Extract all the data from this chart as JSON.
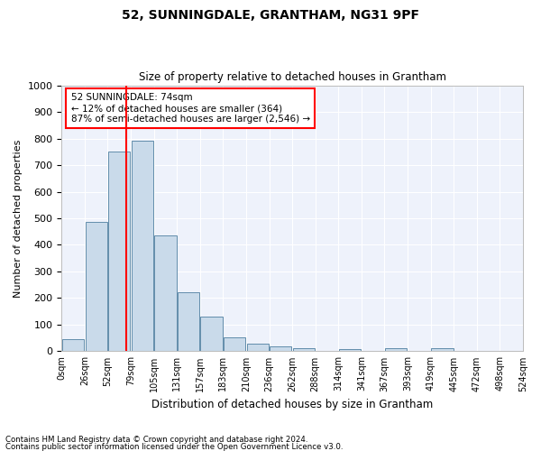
{
  "title1": "52, SUNNINGDALE, GRANTHAM, NG31 9PF",
  "title2": "Size of property relative to detached houses in Grantham",
  "xlabel": "Distribution of detached houses by size in Grantham",
  "ylabel": "Number of detached properties",
  "footnote1": "Contains HM Land Registry data © Crown copyright and database right 2024.",
  "footnote2": "Contains public sector information licensed under the Open Government Licence v3.0.",
  "annotation_line1": "52 SUNNINGDALE: 74sqm",
  "annotation_line2": "← 12% of detached houses are smaller (364)",
  "annotation_line3": "87% of semi-detached houses are larger (2,546) →",
  "tick_labels": [
    "0sqm",
    "26sqm",
    "52sqm",
    "79sqm",
    "105sqm",
    "131sqm",
    "157sqm",
    "183sqm",
    "210sqm",
    "236sqm",
    "262sqm",
    "288sqm",
    "314sqm",
    "341sqm",
    "367sqm",
    "393sqm",
    "419sqm",
    "445sqm",
    "472sqm",
    "498sqm",
    "524sqm"
  ],
  "bar_values": [
    45,
    487,
    750,
    793,
    435,
    222,
    130,
    52,
    30,
    17,
    10,
    0,
    8,
    0,
    10,
    0,
    12,
    0,
    0,
    0
  ],
  "bar_color": "#c9daea",
  "bar_edge_color": "#4f7fa0",
  "bg_color": "#eef2fb",
  "grid_color": "#ffffff",
  "vline_x_bar_index": 2.85,
  "ylim": [
    0,
    1000
  ],
  "yticks": [
    0,
    100,
    200,
    300,
    400,
    500,
    600,
    700,
    800,
    900,
    1000
  ]
}
